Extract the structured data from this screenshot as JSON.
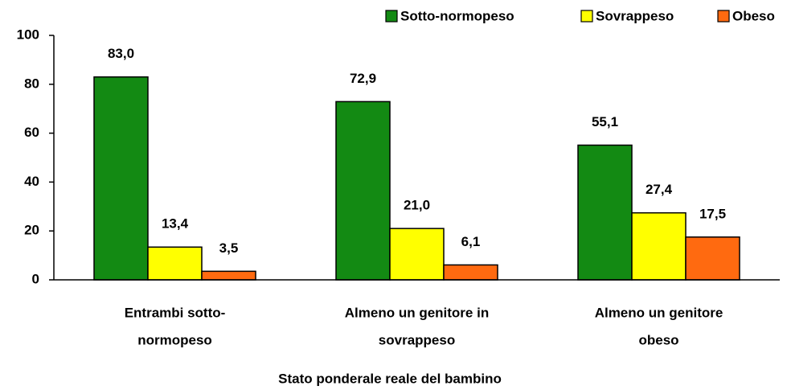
{
  "chart_data": {
    "type": "bar",
    "x_label": "Stato ponderale reale del bambino",
    "categories": [
      [
        "Entrambi sotto-",
        "normopeso"
      ],
      [
        "Almeno un genitore in",
        "sovrappeso"
      ],
      [
        "Almeno un genitore",
        "obeso"
      ]
    ],
    "series": [
      {
        "name": "Sotto-normopeso",
        "color": "#138a13",
        "values": [
          83.0,
          72.9,
          55.1
        ],
        "value_labels": [
          "83,0",
          "72,9",
          "55,1"
        ]
      },
      {
        "name": "Sovrappeso",
        "color": "#ffff00",
        "values": [
          13.4,
          21.0,
          27.4
        ],
        "value_labels": [
          "13,4",
          "21,0",
          "27,4"
        ]
      },
      {
        "name": "Obeso",
        "color": "#ff6a10",
        "values": [
          3.5,
          6.1,
          17.5
        ],
        "value_labels": [
          "3,5",
          "6,1",
          "17,5"
        ]
      }
    ],
    "ylim": [
      0,
      100
    ],
    "yticks": [
      0,
      20,
      40,
      60,
      80,
      100
    ],
    "grid": false,
    "legend": "top-right"
  }
}
